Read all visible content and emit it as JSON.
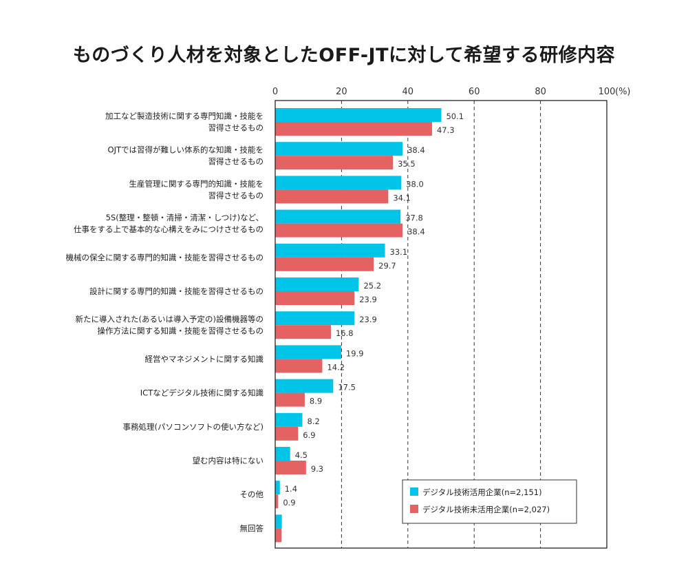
{
  "chart_data": {
    "type": "bar",
    "orientation": "horizontal",
    "title": "ものづくり人材を対象としたOFF-JTに対して希望する研修内容",
    "unit_label": "(%)",
    "xlim": [
      0,
      100
    ],
    "ticks": [
      0,
      20,
      40,
      60,
      80,
      100
    ],
    "tick_labels": [
      "0",
      "20",
      "40",
      "60",
      "80",
      "100"
    ],
    "grid": "dashed vertical",
    "legend_position": "bottom-right",
    "categories": [
      [
        "加工など製造技術に関する専門知識・技能を",
        "習得させるもの"
      ],
      [
        "OJTでは習得が難しい体系的な知識・技能を",
        "習得させるもの"
      ],
      [
        "生産管理に関する専門的知識・技能を",
        "習得させるもの"
      ],
      [
        "5S(整理・整頓・清掃・清潔・しつけ)など、",
        "仕事をする上で基本的な心構えをみにつけさせるもの"
      ],
      [
        "機械の保全に関する専門的知識・技能を習得させるもの"
      ],
      [
        "設計に関する専門的知識・技能を習得させるもの"
      ],
      [
        "新たに導入された(あるいは導入予定の)設備機器等の",
        "操作方法に関する知識・技能を習得させるもの"
      ],
      [
        "経営やマネジメントに関する知識"
      ],
      [
        "ICTなどデジタル技術に関する知識"
      ],
      [
        "事務処理(パソコンソフトの使い方など)"
      ],
      [
        "望む内容は特にない"
      ],
      [
        "その他"
      ],
      [
        "無回答"
      ]
    ],
    "series": [
      {
        "name": "デジタル技術活用企業(n=2,151)",
        "color": "#00c4e8",
        "values": [
          50.1,
          38.4,
          38.0,
          37.8,
          33.1,
          25.2,
          23.9,
          19.9,
          17.5,
          8.2,
          4.5,
          1.4,
          2.0
        ],
        "labels": [
          "50.1",
          "38.4",
          "38.0",
          "37.8",
          "33.1",
          "25.2",
          "23.9",
          "19.9",
          "17.5",
          "8.2",
          "4.5",
          "1.4",
          ""
        ]
      },
      {
        "name": "デジタル技術未活用企業(n=2,027)",
        "color": "#e46262",
        "values": [
          47.3,
          35.5,
          34.1,
          38.4,
          29.7,
          23.9,
          16.8,
          14.2,
          8.9,
          6.9,
          9.3,
          0.9,
          1.9
        ],
        "labels": [
          "47.3",
          "35.5",
          "34.1",
          "38.4",
          "29.7",
          "23.9",
          "16.8",
          "14.2",
          "8.9",
          "6.9",
          "9.3",
          "0.9",
          ""
        ]
      }
    ]
  }
}
